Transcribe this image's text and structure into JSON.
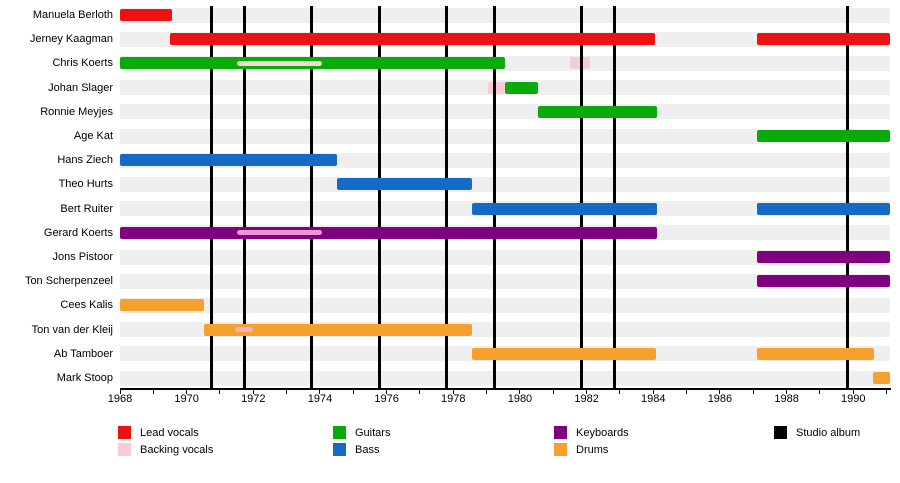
{
  "chart_data": {
    "type": "timeline",
    "description": "Band members timeline (gantt-style) with instrument roles and studio album release markers",
    "x_axis": {
      "start_year": 1968,
      "end_year": 1991.1,
      "tick_every_years": 1,
      "label_every_years": 2,
      "tick_labels": [
        "1968",
        "1970",
        "1972",
        "1974",
        "1976",
        "1978",
        "1980",
        "1982",
        "1984",
        "1986",
        "1988",
        "1990"
      ]
    },
    "rows": [
      {
        "name": "Manuela Berloth",
        "segments": [
          {
            "role": "lead",
            "start": 1968,
            "end": 1969.55
          }
        ],
        "overlays": []
      },
      {
        "name": "Jerney Kaagman",
        "segments": [
          {
            "role": "lead",
            "start": 1969.5,
            "end": 1984.05
          },
          {
            "role": "lead",
            "start": 1987.1,
            "end": 1991.1
          }
        ],
        "overlays": []
      },
      {
        "name": "Chris Koerts",
        "segments": [
          {
            "role": "guitars",
            "start": 1968,
            "end": 1979.55
          },
          {
            "role": "backing",
            "start": 1981.5,
            "end": 1982.1,
            "standalone": true
          }
        ],
        "overlays": [
          {
            "start": 1971.5,
            "end": 1974.05,
            "color": "#f3d9cf"
          }
        ]
      },
      {
        "name": "Johan Slager",
        "segments": [
          {
            "role": "backing",
            "start": 1979.05,
            "end": 1979.55,
            "standalone": true
          },
          {
            "role": "guitars",
            "start": 1979.55,
            "end": 1980.55
          }
        ],
        "overlays": []
      },
      {
        "name": "Ronnie Meyjes",
        "segments": [
          {
            "role": "guitars",
            "start": 1980.55,
            "end": 1984.1
          }
        ],
        "overlays": []
      },
      {
        "name": "Age Kat",
        "segments": [
          {
            "role": "guitars",
            "start": 1987.1,
            "end": 1991.1
          }
        ],
        "overlays": []
      },
      {
        "name": "Hans Ziech",
        "segments": [
          {
            "role": "bass",
            "start": 1968,
            "end": 1974.5
          }
        ],
        "overlays": []
      },
      {
        "name": "Theo Hurts",
        "segments": [
          {
            "role": "bass",
            "start": 1974.5,
            "end": 1978.55
          }
        ],
        "overlays": []
      },
      {
        "name": "Bert Ruiter",
        "segments": [
          {
            "role": "bass",
            "start": 1978.55,
            "end": 1984.1
          },
          {
            "role": "bass",
            "start": 1987.1,
            "end": 1991.1
          }
        ],
        "overlays": []
      },
      {
        "name": "Gerard Koerts",
        "segments": [
          {
            "role": "keyboards",
            "start": 1968,
            "end": 1984.1
          }
        ],
        "overlays": [
          {
            "start": 1971.5,
            "end": 1974.05,
            "color": "#ee95d8"
          }
        ]
      },
      {
        "name": "Jons Pistoor",
        "segments": [
          {
            "role": "keyboards",
            "start": 1987.1,
            "end": 1991.1
          }
        ],
        "overlays": []
      },
      {
        "name": "Ton Scherpenzeel",
        "segments": [
          {
            "role": "keyboards",
            "start": 1987.1,
            "end": 1991.1
          }
        ],
        "overlays": []
      },
      {
        "name": "Cees Kalis",
        "segments": [
          {
            "role": "drums",
            "start": 1968,
            "end": 1970.52
          }
        ],
        "overlays": []
      },
      {
        "name": "Ton van der Kleij",
        "segments": [
          {
            "role": "drums",
            "start": 1970.52,
            "end": 1978.55
          }
        ],
        "overlays": [
          {
            "start": 1971.45,
            "end": 1972.0,
            "color": "#f0b4c4"
          }
        ]
      },
      {
        "name": "Ab Tamboer",
        "segments": [
          {
            "role": "drums",
            "start": 1978.55,
            "end": 1984.08
          },
          {
            "role": "drums",
            "start": 1987.1,
            "end": 1990.62
          }
        ],
        "overlays": []
      },
      {
        "name": "Mark Stoop",
        "segments": [
          {
            "role": "drums",
            "start": 1990.59,
            "end": 1991.1
          }
        ],
        "overlays": []
      }
    ],
    "studio_album_lines_year": [
      1970.76,
      1971.75,
      1973.76,
      1975.8,
      1977.81,
      1979.25,
      1981.86,
      1982.85,
      1989.84
    ],
    "legend_position": "bottom"
  },
  "roles": {
    "lead": {
      "label": "Lead vocals",
      "color": "#ee1111"
    },
    "backing": {
      "label": "Backing vocals",
      "color": "#f9ccd3"
    },
    "guitars": {
      "label": "Guitars",
      "color": "#0aaa0a"
    },
    "bass": {
      "label": "Bass",
      "color": "#1569c7"
    },
    "keyboards": {
      "label": "Keyboards",
      "color": "#800080"
    },
    "drums": {
      "label": "Drums",
      "color": "#f6a02d"
    },
    "album": {
      "label": "Studio album",
      "color": "#000000"
    }
  },
  "legend_columns": [
    [
      "lead",
      "backing"
    ],
    [
      "guitars",
      "bass"
    ],
    [
      "keyboards",
      "drums"
    ],
    [
      "album"
    ]
  ],
  "stripe_color": "#efefef"
}
